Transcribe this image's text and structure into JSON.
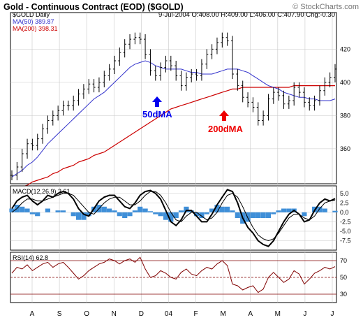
{
  "header": {
    "title": "Gold - Continuous Contract (EOD) ($GOLD)",
    "copyright": "© StockCharts.com",
    "symbol": "$GOLD Daily",
    "ohlc": "9-Jul-2004 O:408.00 H:409.00 L:406.00 C:407.90 Chg:-0.30",
    "ma50_label": "MA(50) 389.87",
    "ma200_label": "MA(200) 398.31",
    "macd_label": "MACD(12,26,9) 3.61",
    "rsi_label": "RSI(14) 62.8"
  },
  "annotations": {
    "ma50": "50dMA",
    "ma200": "200dMA"
  },
  "colors": {
    "price": "#000000",
    "ma50": "#3333cc",
    "ma200": "#cc0000",
    "macd_hist": "#3f8fd8",
    "rsi": "#800000",
    "grid": "#c8c8c8",
    "ann_blue": "#0000ee",
    "ann_red": "#ee0000"
  },
  "chart_data": [
    {
      "type": "ohlc",
      "series": [
        {
          "name": "$GOLD Daily",
          "y": [
            344,
            349,
            357,
            363,
            362,
            366,
            372,
            377,
            380,
            383,
            386,
            386,
            389,
            393,
            396,
            399,
            397,
            400,
            404,
            408,
            413,
            418,
            423,
            426,
            427,
            426,
            417,
            407,
            404,
            409,
            413,
            410,
            404,
            398,
            403,
            405,
            404,
            411,
            417,
            420,
            424,
            427,
            425,
            405,
            398,
            391,
            388,
            385,
            377,
            380,
            390,
            394,
            392,
            387,
            389,
            397,
            394,
            388,
            386,
            389,
            395,
            400,
            403,
            408
          ]
        },
        {
          "name": "MA(50)",
          "y": [
            343,
            345,
            347,
            350,
            352,
            355,
            359,
            363,
            366,
            369,
            372,
            375,
            378,
            381,
            384,
            387,
            390,
            392,
            394,
            397,
            400,
            403,
            406,
            409,
            411,
            412,
            413,
            412,
            410,
            409,
            408,
            408,
            408,
            408,
            407,
            406,
            406,
            405,
            405,
            405,
            406,
            407,
            408,
            408,
            408,
            407,
            406,
            404,
            402,
            400,
            398,
            397,
            396,
            394,
            393,
            392,
            391,
            391,
            390,
            390,
            389,
            389,
            389,
            390
          ]
        },
        {
          "name": "MA(200)",
          "y": [
            335,
            336,
            337,
            338,
            340,
            341,
            342,
            343,
            345,
            346,
            348,
            349,
            350,
            352,
            353,
            354,
            356,
            357,
            358,
            360,
            362,
            364,
            366,
            368,
            370,
            372,
            374,
            376,
            378,
            380,
            382,
            384,
            385,
            386,
            387,
            388,
            389,
            390,
            391,
            392,
            393,
            394,
            395,
            396,
            396,
            397,
            397,
            397,
            397,
            397,
            397,
            397,
            397,
            397,
            397,
            398,
            398,
            398,
            398,
            398,
            398,
            398,
            398,
            398
          ]
        }
      ],
      "x_tick_labels": [
        "A",
        "S",
        "O",
        "N",
        "D",
        "04",
        "F",
        "M",
        "A",
        "M",
        "J",
        "J"
      ],
      "y_ticks": [
        360,
        380,
        400,
        420
      ],
      "ylim": [
        341,
        437
      ]
    },
    {
      "type": "line",
      "series": [
        {
          "name": "MACD",
          "y": [
            1,
            3,
            4,
            4.5,
            3,
            2,
            3,
            4.5,
            4,
            5,
            5.5,
            5,
            3.5,
            1,
            -0.5,
            -1,
            1,
            3,
            4,
            4.5,
            4.5,
            3,
            1.5,
            1,
            2.5,
            4.5,
            5.5,
            5.8,
            5,
            3.5,
            0.5,
            -2.5,
            -3.5,
            -2,
            0.5,
            0.5,
            -1,
            -2.5,
            -2.5,
            -0.5,
            2,
            4,
            6,
            5.5,
            2.5,
            -1.5,
            -4,
            -5.5,
            -7.5,
            -8.5,
            -9,
            -7.5,
            -5,
            -2.5,
            -0.5,
            0.5,
            -0.5,
            -2.5,
            -2,
            0.5,
            2.5,
            3.5,
            3,
            3.61
          ]
        },
        {
          "name": "Signal",
          "y": [
            0,
            1,
            2.5,
            3.5,
            3.5,
            3,
            3,
            3.5,
            4,
            4.5,
            5,
            5,
            4.5,
            3,
            1.5,
            0,
            -0.5,
            1,
            2.5,
            3.5,
            4,
            4,
            3,
            2,
            2,
            3,
            4.5,
            5.5,
            5.5,
            4.5,
            2.5,
            0,
            -2,
            -2.5,
            -1,
            0,
            0,
            -1,
            -2,
            -1.5,
            0,
            2.5,
            4.5,
            5,
            4,
            1.5,
            -1.5,
            -4,
            -6,
            -7,
            -7.5,
            -7,
            -5.5,
            -3.5,
            -1.5,
            -0.5,
            -0.5,
            -1.5,
            -2,
            -1,
            1,
            2.5,
            3,
            3.2
          ]
        },
        {
          "name": "Histogram",
          "y": [
            1,
            2,
            1.5,
            1,
            -0.5,
            -1,
            0,
            1,
            0,
            0.5,
            0.5,
            0,
            -1,
            -2,
            -2,
            -1,
            1.5,
            2,
            1.5,
            1,
            0.5,
            -1,
            -1.5,
            -1,
            0.5,
            1.5,
            1,
            0.3,
            -0.5,
            -1,
            -2,
            -2.5,
            -1.5,
            0.5,
            1.5,
            0.5,
            -1,
            -1.5,
            -0.5,
            1,
            2,
            1.5,
            1.5,
            0.5,
            -1.5,
            -3,
            -2.5,
            -1.5,
            -1.5,
            -1.5,
            -1.5,
            -0.5,
            0.5,
            1,
            1,
            1,
            0,
            -1,
            0,
            1.5,
            1.5,
            1,
            0,
            0.4
          ]
        }
      ],
      "y_ticks": [
        -7.5,
        -5.0,
        -2.5,
        0.0,
        2.5,
        5.0
      ],
      "ylim": [
        -10,
        7
      ]
    },
    {
      "type": "line",
      "series": [
        {
          "name": "RSI(14)",
          "y": [
            55,
            62,
            60,
            65,
            58,
            62,
            66,
            68,
            62,
            66,
            68,
            62,
            55,
            48,
            52,
            58,
            62,
            66,
            68,
            72,
            70,
            66,
            70,
            72,
            68,
            74,
            60,
            50,
            52,
            58,
            55,
            50,
            48,
            56,
            60,
            54,
            52,
            58,
            62,
            60,
            66,
            70,
            64,
            42,
            40,
            35,
            38,
            40,
            32,
            36,
            50,
            56,
            50,
            44,
            48,
            58,
            54,
            42,
            48,
            55,
            58,
            62,
            60,
            62.8
          ]
        }
      ],
      "y_ticks": [
        30,
        50,
        70
      ],
      "ylim": [
        20,
        80
      ]
    }
  ]
}
